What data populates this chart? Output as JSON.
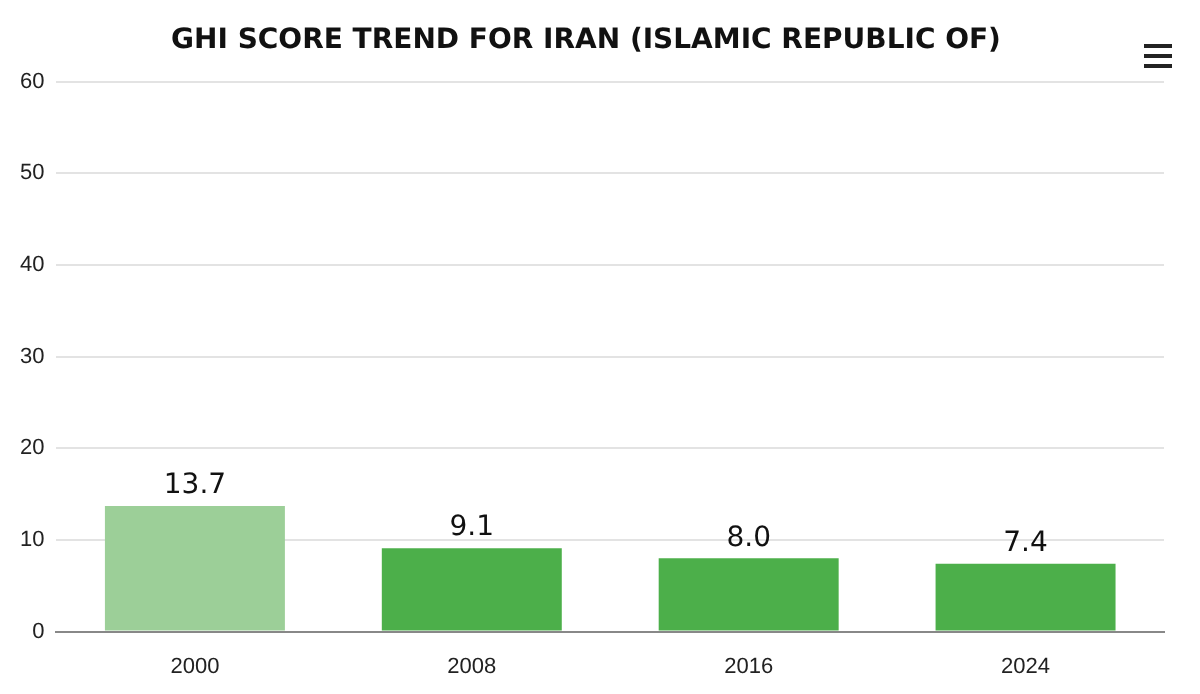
{
  "chart_data": {
    "type": "bar",
    "title": "GHI SCORE TREND FOR IRAN (ISLAMIC REPUBLIC OF)",
    "categories": [
      "2000",
      "2008",
      "2016",
      "2024"
    ],
    "values": [
      13.7,
      9.1,
      8.0,
      7.4
    ],
    "colors": [
      "#9ccf98",
      "#4caf4a",
      "#4caf4a",
      "#4caf4a"
    ],
    "value_labels": [
      "13.7",
      "9.1",
      "8.0",
      "7.4"
    ],
    "ylim": [
      0,
      60
    ],
    "yticks": [
      0,
      10,
      20,
      30,
      40,
      50,
      60
    ],
    "grid": "y",
    "legend": false
  }
}
